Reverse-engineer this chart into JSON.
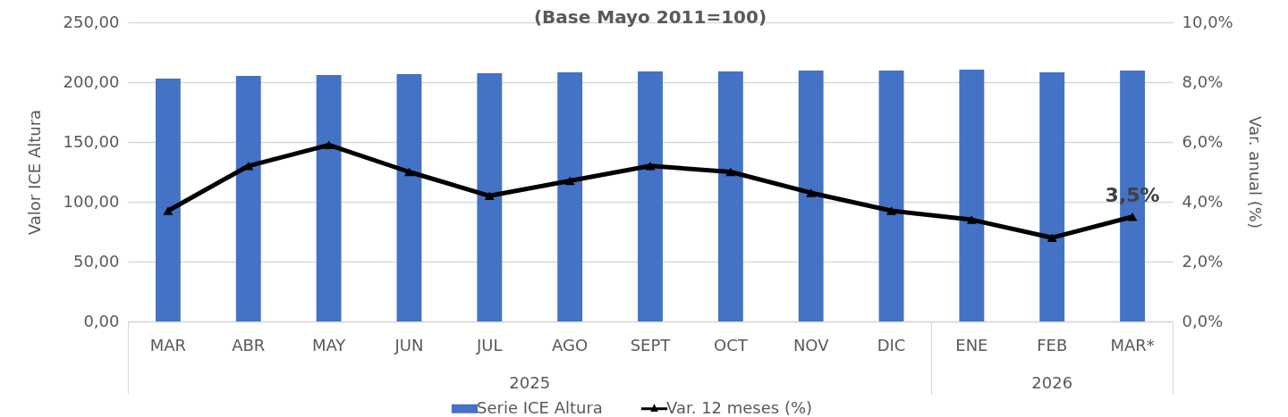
{
  "chart_data": {
    "type": "bar",
    "title": "(Base Mayo 2011=100)",
    "ylabel": "Valor ICE Altura",
    "y2label": "Var. anual (%)",
    "categories": [
      "MAR",
      "ABR",
      "MAY",
      "JUN",
      "JUL",
      "AGO",
      "SEPT",
      "OCT",
      "NOV",
      "DIC",
      "ENE",
      "FEB",
      "MAR*"
    ],
    "series": [
      {
        "name": "Serie ICE Altura",
        "color": "#4472c4",
        "values": [
          203,
          205.2,
          206,
          206.7,
          207.5,
          208.2,
          209,
          209,
          209.7,
          209.7,
          210.4,
          208.2,
          209.7
        ]
      },
      {
        "name": "Var. 12 meses (%)",
        "type": "line",
        "axis": "y2",
        "color": "#000000",
        "marker": "triangle",
        "line_style": "solid",
        "values": [
          3.7,
          5.2,
          5.9,
          5.0,
          4.2,
          4.7,
          5.2,
          5.0,
          4.3,
          3.7,
          3.4,
          2.8,
          3.5
        ],
        "value_labels": [
          null,
          null,
          null,
          null,
          null,
          null,
          null,
          null,
          null,
          null,
          null,
          null,
          "3,5%"
        ]
      }
    ],
    "ylim": [
      0,
      250
    ],
    "yticks": [
      {
        "value": 0,
        "label": "0,00"
      },
      {
        "value": 50,
        "label": "50,00"
      },
      {
        "value": 100,
        "label": "100,00"
      },
      {
        "value": 150,
        "label": "150,00"
      },
      {
        "value": 200,
        "label": "200,00"
      },
      {
        "value": 250,
        "label": "250,00"
      }
    ],
    "y2lim": [
      0,
      10
    ],
    "y2ticks": [
      {
        "value": 0,
        "label": "0,0%"
      },
      {
        "value": 2,
        "label": "2,0%"
      },
      {
        "value": 4,
        "label": "4,0%"
      },
      {
        "value": 6,
        "label": "6,0%"
      },
      {
        "value": 8,
        "label": "8,0%"
      },
      {
        "value": 10,
        "label": "10,0%"
      }
    ],
    "annotations": [
      "2025",
      "2026"
    ],
    "grid": "y",
    "legend": "bottom"
  }
}
